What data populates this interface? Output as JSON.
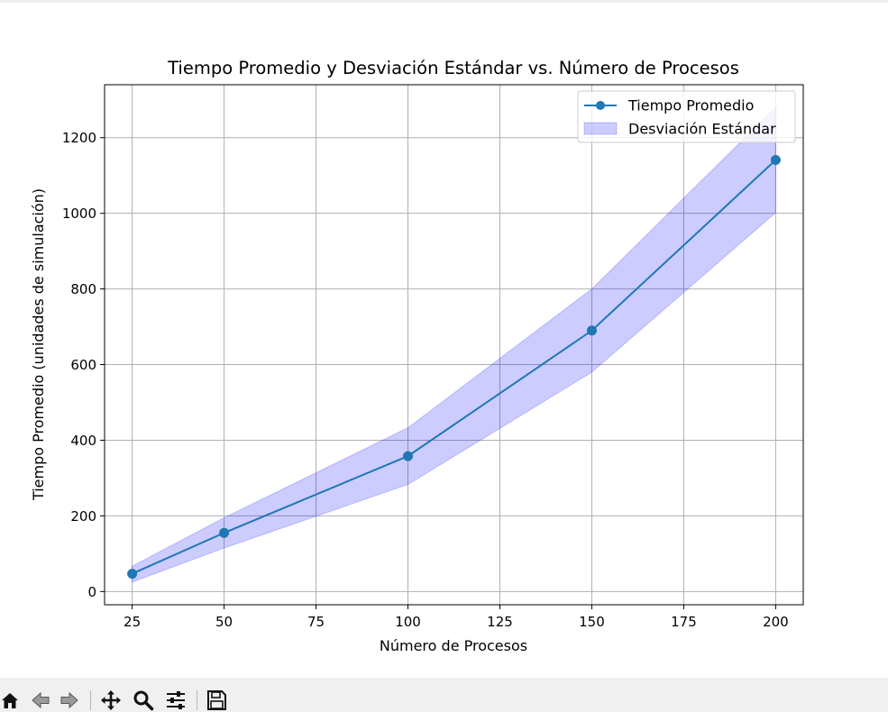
{
  "chart_data": {
    "type": "line",
    "title": "Tiempo Promedio y Desviación Estándar vs. Número de Procesos",
    "xlabel": "Número de Procesos",
    "ylabel": "Tiempo Promedio (unidades de simulación)",
    "x": [
      25,
      50,
      100,
      150,
      200
    ],
    "series": [
      {
        "name": "Tiempo Promedio",
        "values": [
          47,
          155,
          358,
          690,
          1141
        ],
        "color": "#1f77b4",
        "marker": "circle"
      }
    ],
    "band": {
      "name": "Desviación Estándar",
      "upper": [
        67,
        195,
        433,
        800,
        1280
      ],
      "lower": [
        25,
        115,
        283,
        580,
        1002
      ],
      "color": "#0000ff",
      "alpha": 0.2
    },
    "xlim": [
      17.5,
      207.5
    ],
    "ylim": [
      -35,
      1340
    ],
    "xticks": [
      25,
      50,
      75,
      100,
      125,
      150,
      175,
      200
    ],
    "yticks": [
      0,
      200,
      400,
      600,
      800,
      1000,
      1200
    ],
    "grid": true,
    "legend_position": "top-right"
  },
  "toolbar": {
    "buttons": [
      {
        "name": "home-button",
        "icon": "home-icon"
      },
      {
        "name": "back-button",
        "icon": "arrow-left-icon"
      },
      {
        "name": "forward-button",
        "icon": "arrow-right-icon"
      },
      {
        "name": "pan-button",
        "icon": "move-icon"
      },
      {
        "name": "zoom-button",
        "icon": "magnifier-icon"
      },
      {
        "name": "configure-button",
        "icon": "sliders-icon"
      },
      {
        "name": "save-button",
        "icon": "floppy-disk-icon"
      }
    ]
  }
}
